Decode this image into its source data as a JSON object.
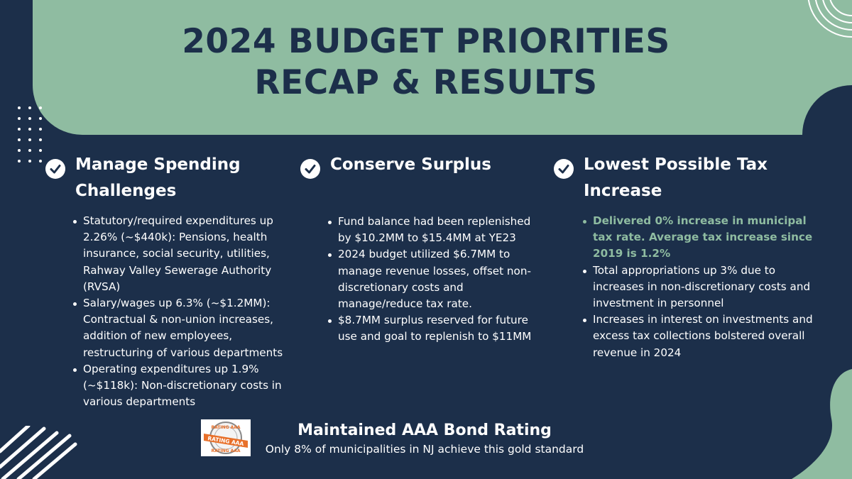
{
  "title": {
    "line1": "2024 BUDGET PRIORITIES",
    "line2": "RECAP & RESULTS"
  },
  "colors": {
    "background": "#1c2f4a",
    "accent": "#8fbca1",
    "text": "#ffffff",
    "badge_orange": "#e8702a"
  },
  "columns": [
    {
      "icon": "check-circle-icon",
      "title": "Manage Spending Challenges",
      "bullets": [
        {
          "text": "Statutory/required expenditures up 2.26% (~$440k): Pensions, health insurance, social security, utilities, Rahway Valley Sewerage Authority (RVSA)",
          "highlight": false
        },
        {
          "text": "Salary/wages up 6.3% (~$1.2MM): Contractual & non-union increases, addition of new employees, restructuring of various departments",
          "highlight": false
        },
        {
          "text": "Operating expenditures up 1.9% (~$118k): Non-discretionary costs in various departments",
          "highlight": false
        }
      ]
    },
    {
      "icon": "check-circle-icon",
      "title": "Conserve Surplus",
      "bullets": [
        {
          "text": "Fund balance had been replenished by $10.2MM to $15.4MM at YE23",
          "highlight": false
        },
        {
          "text": "2024 budget utilized $6.7MM to manage revenue losses, offset non-discretionary costs and manage/reduce tax rate.",
          "highlight": false
        },
        {
          "text": "$8.7MM surplus reserved for future use and goal to replenish to $11MM",
          "highlight": false
        }
      ]
    },
    {
      "icon": "check-circle-icon",
      "title": "Lowest Possible Tax Increase",
      "bullets": [
        {
          "text": "Delivered 0% increase in municipal tax rate. Average tax increase since 2019 is 1.2%",
          "highlight": true
        },
        {
          "text": "Total appropriations up 3% due to increases in non-discretionary costs and investment in personnel",
          "highlight": false
        },
        {
          "text": "Increases in interest on investments and excess tax collections bolstered overall revenue in 2024",
          "highlight": false
        }
      ]
    }
  ],
  "footer": {
    "badge_icon": "aaa-rating-seal-icon",
    "badge_text_top": "RATING AAA",
    "badge_ribbon": "RATING AAA",
    "badge_text_bottom": "RATING AAA",
    "title": "Maintained AAA Bond Rating",
    "subtitle": "Only 8% of municipalities in NJ achieve this gold standard"
  }
}
